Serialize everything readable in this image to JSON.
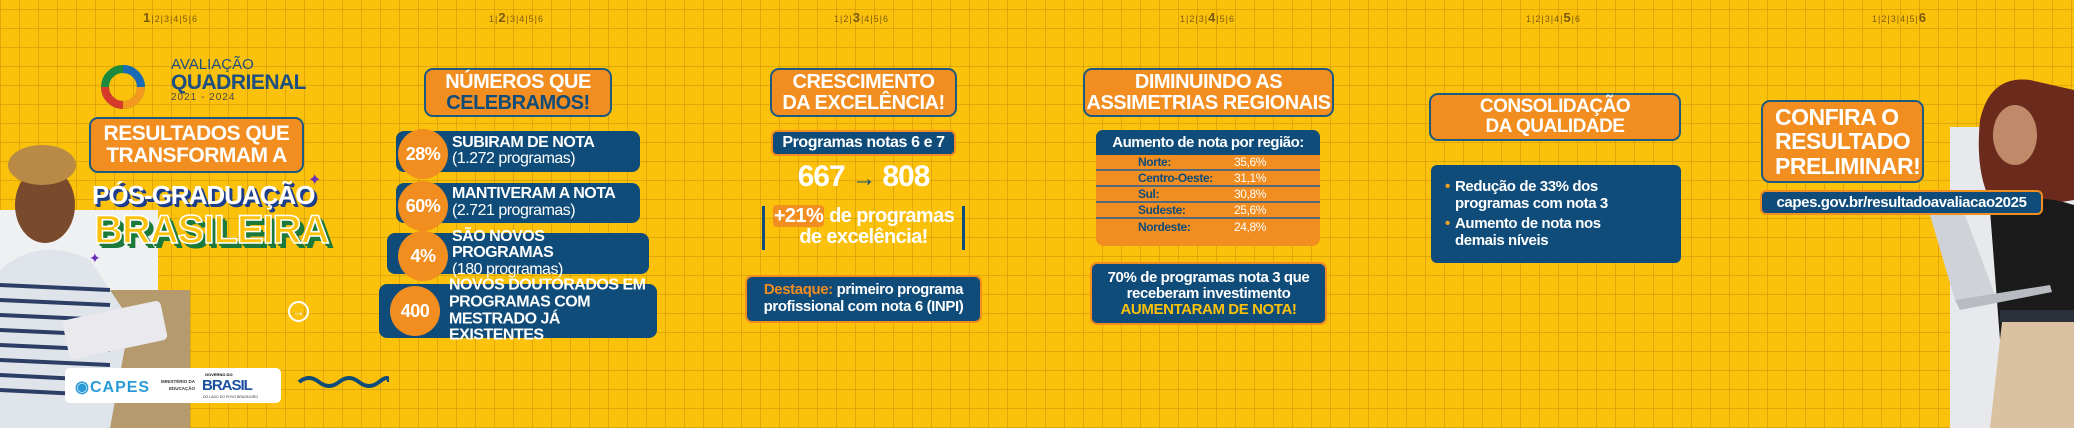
{
  "pagination": {
    "pages": [
      "1",
      "2",
      "3",
      "4",
      "5",
      "6"
    ]
  },
  "logo": {
    "line1": "AVALIAÇÃO",
    "line2": "QUADRIENAL",
    "years": "2021 - 2024"
  },
  "hero": {
    "headline": "RESULTADOS QUE TRANSFORMAM A",
    "line1": "PÓS-GRADUAÇÃO",
    "line2": "BRASILEIRA"
  },
  "footer": {
    "capes": "CAPES",
    "ministry_line1": "MINISTÉRIO DA",
    "ministry_line2": "EDUCAÇÃO",
    "gov_top": "GOVERNO DO",
    "gov_main": "BRASIL",
    "gov_sub": "DO LADO DO POVO BRASILEIRO"
  },
  "panel2": {
    "title_line1": "NÚMEROS QUE",
    "title_line2": "CELEBRAMOS!",
    "items": [
      {
        "value": "28%",
        "line1": "SUBIRAM DE NOTA",
        "line2": "(1.272 programas)",
        "line3": ""
      },
      {
        "value": "60%",
        "line1": "MANTIVERAM A NOTA",
        "line2": "(2.721 programas)",
        "line3": ""
      },
      {
        "value": "4%",
        "line1": "SÃO NOVOS PROGRAMAS",
        "line2": "(180 programas)",
        "line3": ""
      },
      {
        "value": "400",
        "line1": "NOVOS DOUTORADOS EM",
        "line2": "PROGRAMAS COM",
        "line3": "MESTRADO JÁ EXISTENTES"
      }
    ]
  },
  "panel3": {
    "title_line1": "CRESCIMENTO",
    "title_line2": "DA EXCELÊNCIA!",
    "subtitle": "Programas notas 6 e 7",
    "from": "667",
    "arrow": "→",
    "to": "808",
    "growth": "+21%",
    "growth_text1": "de programas",
    "growth_text2": "de excelência!",
    "highlight_label": "Destaque:",
    "highlight_text1": "primeiro programa",
    "highlight_text2": "profissional com nota 6 (INPI)"
  },
  "panel4": {
    "title_line1": "DIMINUINDO AS",
    "title_line2": "ASSIMETRIAS REGIONAIS",
    "table_header": "Aumento de nota por região:",
    "regions": [
      {
        "name": "Norte:",
        "value": "35,6%"
      },
      {
        "name": "Centro-Oeste:",
        "value": "31,1%"
      },
      {
        "name": "Sul:",
        "value": "30,8%"
      },
      {
        "name": "Sudeste:",
        "value": "25,6%"
      },
      {
        "name": "Nordeste:",
        "value": "24,8%"
      }
    ],
    "note_line1": "70% de programas nota 3 que",
    "note_line2": "receberam investimento",
    "note_line3": "AUMENTARAM DE NOTA!"
  },
  "panel5": {
    "title_line1": "CONSOLIDAÇÃO",
    "title_line2": "DA QUALIDADE",
    "bullets": [
      {
        "line1": "Redução de 33% dos",
        "line2": "programas com nota 3"
      },
      {
        "line1": "Aumento de nota nos",
        "line2": "demais níveis"
      }
    ]
  },
  "panel6": {
    "title_line1": "CONFIRA O",
    "title_line2": "RESULTADO",
    "title_line3": "PRELIMINAR!",
    "url": "capes.gov.br/resultadoavaliacao2025"
  },
  "colors": {
    "background": "#FBC10B",
    "orange": "#F28D1F",
    "navy": "#0F4C7A"
  }
}
